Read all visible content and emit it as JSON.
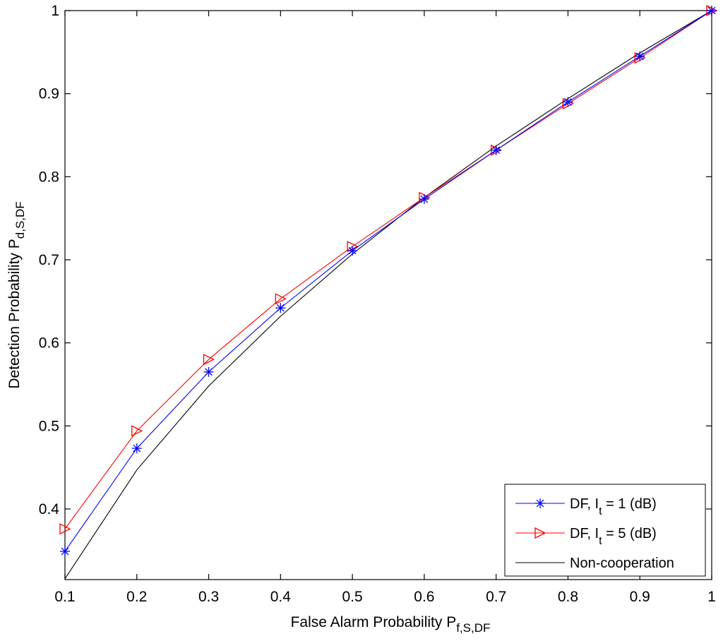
{
  "chart_data": {
    "type": "line",
    "xlabel": "False Alarm Probability P",
    "xlabel_sub": "f,S,DF",
    "ylabel": "Detection Probability P",
    "ylabel_sub": "d,S,DF",
    "xlim": [
      0.1,
      1
    ],
    "ylim": [
      0.315,
      1
    ],
    "xticks": [
      "0.1",
      "0.2",
      "0.3",
      "0.4",
      "0.5",
      "0.6",
      "0.7",
      "0.8",
      "0.9",
      "1"
    ],
    "xtick_values": [
      0.1,
      0.2,
      0.3,
      0.4,
      0.5,
      0.6,
      0.7,
      0.8,
      0.9,
      1.0
    ],
    "yticks": [
      "0.4",
      "0.5",
      "0.6",
      "0.7",
      "0.8",
      "0.9",
      "1"
    ],
    "ytick_values": [
      0.4,
      0.5,
      0.6,
      0.7,
      0.8,
      0.9,
      1.0
    ],
    "grid": false,
    "legend_position": "bottom-right",
    "x": [
      0.1,
      0.2,
      0.3,
      0.4,
      0.5,
      0.6,
      0.7,
      0.8,
      0.9,
      1.0
    ],
    "series": [
      {
        "name": "DF, I = 1 (dB)",
        "legend_main": "DF, I",
        "legend_sub": "t",
        "legend_rest": " = 1 (dB)",
        "color": "#0000ff",
        "marker": "asterisk",
        "values": [
          0.349,
          0.473,
          0.565,
          0.642,
          0.711,
          0.773,
          0.832,
          0.89,
          0.945,
          1.0
        ]
      },
      {
        "name": "DF, I = 5 (dB)",
        "legend_main": "DF, I",
        "legend_sub": "t",
        "legend_rest": " = 5 (dB)",
        "color": "#ff0000",
        "marker": "triangle-right",
        "values": [
          0.376,
          0.494,
          0.58,
          0.653,
          0.716,
          0.775,
          0.832,
          0.888,
          0.943,
          1.0
        ]
      },
      {
        "name": "Non-cooperation",
        "legend_main": "Non-cooperation",
        "legend_sub": "",
        "legend_rest": "",
        "color": "#000000",
        "marker": "none",
        "values": [
          0.316,
          0.447,
          0.548,
          0.632,
          0.707,
          0.775,
          0.837,
          0.894,
          0.949,
          1.0
        ]
      }
    ]
  }
}
